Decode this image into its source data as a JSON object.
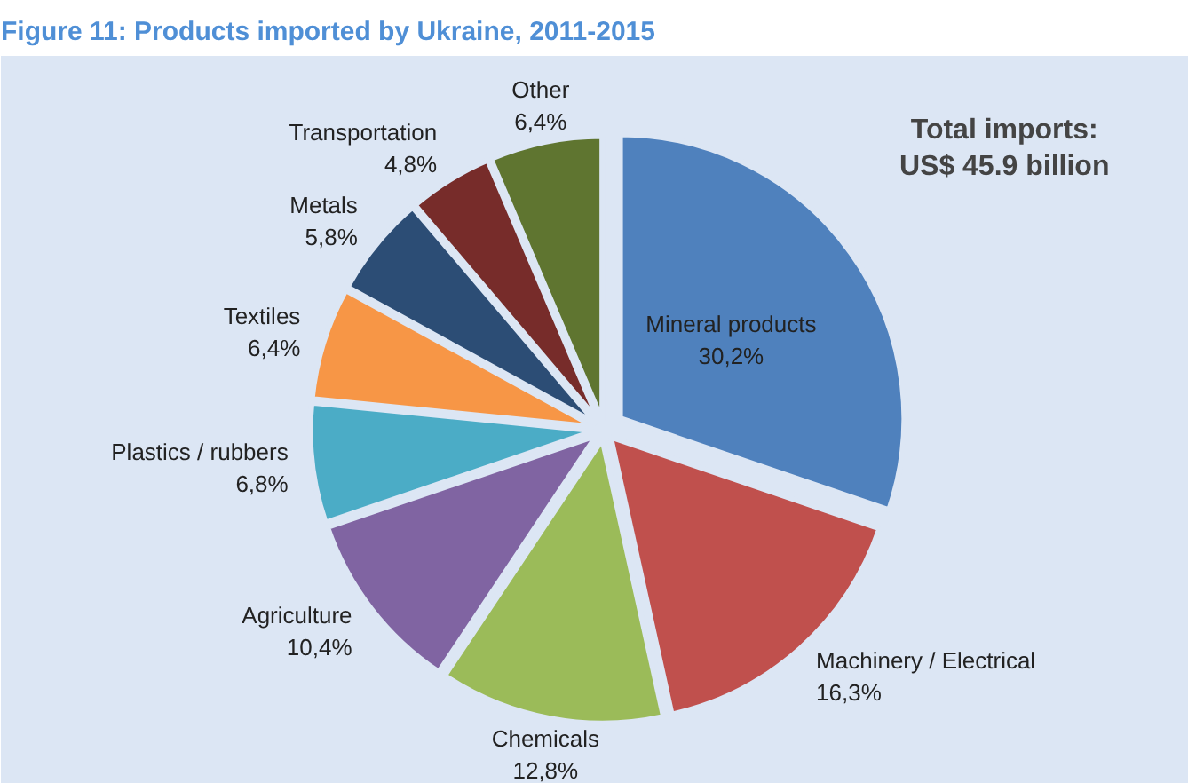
{
  "chart_data": {
    "type": "pie",
    "title": "Figure 11: Products imported by Ukraine, 2011-2015",
    "categories": [
      "Mineral products",
      "Machinery / Electrical",
      "Chemicals",
      "Agriculture",
      "Plastics / rubbers",
      "Textiles",
      "Metals",
      "Transportation",
      "Other"
    ],
    "values": [
      30.2,
      16.3,
      12.8,
      10.4,
      6.8,
      6.4,
      5.8,
      4.8,
      6.4
    ],
    "value_labels": [
      "30,2%",
      "16,3%",
      "12,8%",
      "10,4%",
      "6,8%",
      "6,4%",
      "5,8%",
      "4,8%",
      "6,4%"
    ],
    "colors": [
      "#4f81bd",
      "#c0504d",
      "#9bbb59",
      "#8064a2",
      "#4bacc6",
      "#f79646",
      "#2c4d75",
      "#772c2a",
      "#5f7530"
    ],
    "annotations": [
      "Total imports:\nUS$ 45.9 billion"
    ]
  }
}
